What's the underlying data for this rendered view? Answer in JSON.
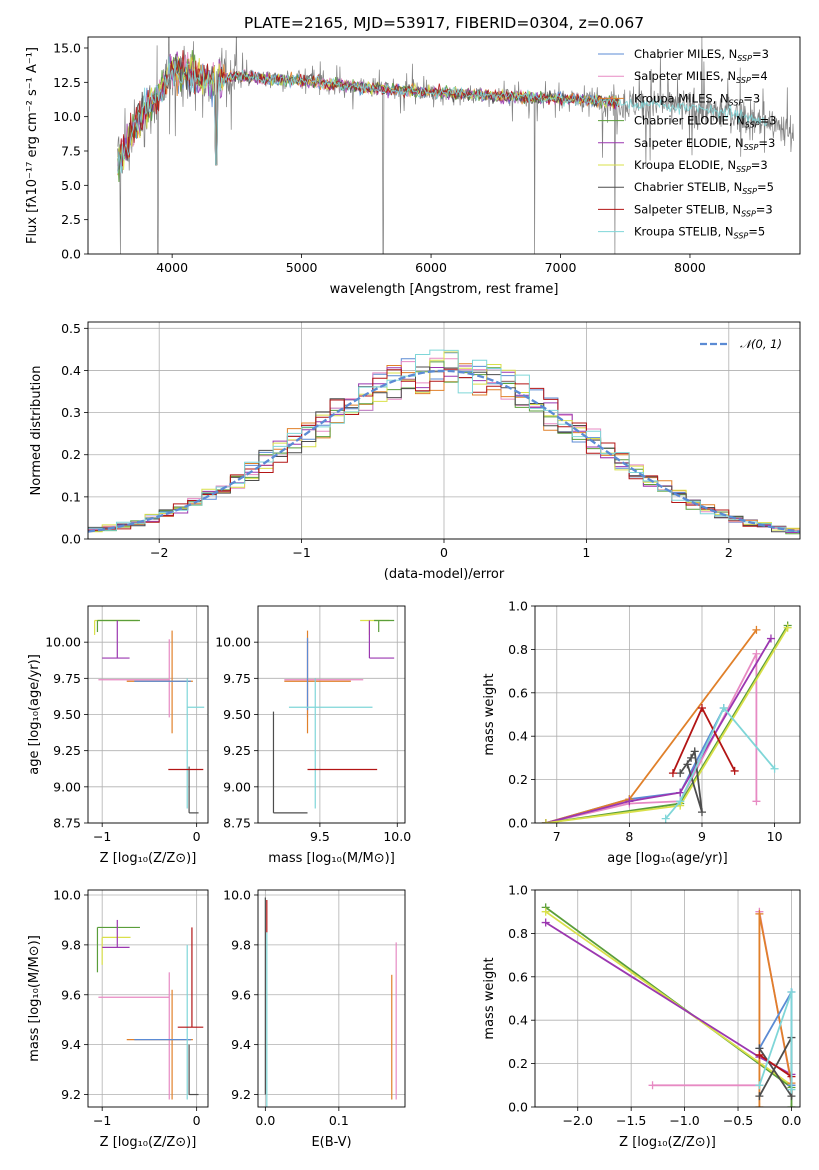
{
  "colors": {
    "chabrier_miles": "#5b8bd4",
    "salpeter_miles": "#e78ac3",
    "kroupa_miles": "#e0802a",
    "chabrier_elodie": "#5a9e3a",
    "salpeter_elodie": "#9b37b0",
    "kroupa_elodie": "#d9e04a",
    "chabrier_stelib": "#4d4d4d",
    "salpeter_stelib": "#b31515",
    "kroupa_stelib": "#7fd6d8",
    "data": "#808080",
    "normal": "#5b8bd4"
  },
  "chart_data": [
    {
      "id": "spectrum",
      "type": "line",
      "title": "PLATE=2165, MJD=53917, FIBERID=0304, z=0.067",
      "xlabel": "wavelength [Angstrom, rest frame]",
      "ylabel": "Flux [fλ10⁻¹⁷ erg cm⁻² s⁻¹ A⁻¹]",
      "xlim": [
        3350,
        8850
      ],
      "ylim": [
        0,
        15.8
      ],
      "xticks": [
        "4000",
        "5000",
        "6000",
        "7000",
        "8000"
      ],
      "xtick_values": [
        4000,
        5000,
        6000,
        7000,
        8000
      ],
      "yticks": [
        "0.0",
        "2.5",
        "5.0",
        "7.5",
        "10.0",
        "12.5",
        "15.0"
      ],
      "ytick_values": [
        0,
        2.5,
        5,
        7.5,
        10,
        12.5,
        15
      ],
      "grid": false,
      "legend_position": "top-right",
      "continuum": {
        "x": [
          3580,
          3700,
          3800,
          3900,
          4000,
          4100,
          4200,
          4300,
          4500,
          4700,
          5000,
          5500,
          6000,
          6500,
          7000,
          7300,
          7500,
          7800,
          8000,
          8300,
          8600,
          8800
        ],
        "y": [
          6.5,
          9.0,
          10.5,
          11.5,
          13.5,
          13.2,
          12.9,
          12.6,
          13.0,
          12.8,
          12.6,
          12.1,
          11.8,
          11.5,
          11.3,
          11.2,
          11.0,
          10.8,
          10.6,
          10.3,
          9.5,
          8.8
        ]
      },
      "dips": [
        {
          "x": 3600,
          "y": 0
        },
        {
          "x": 3890,
          "y": 0
        },
        {
          "x": 4340,
          "y": 6.5
        },
        {
          "x": 5630,
          "y": 0
        },
        {
          "x": 6800,
          "y": 0
        },
        {
          "x": 7420,
          "y": 0
        }
      ],
      "series": [
        {
          "name": "Chabrier MILES, N",
          "sub": "SSP",
          "suffix": "=3",
          "color_key": "chabrier_miles"
        },
        {
          "name": "Salpeter MILES, N",
          "sub": "SSP",
          "suffix": "=4",
          "color_key": "salpeter_miles"
        },
        {
          "name": "Kroupa MILES, N",
          "sub": "SSP",
          "suffix": "=3",
          "color_key": "kroupa_miles"
        },
        {
          "name": "Chabrier ELODIE, N",
          "sub": "SSP",
          "suffix": "=3",
          "color_key": "chabrier_elodie"
        },
        {
          "name": "Salpeter ELODIE, N",
          "sub": "SSP",
          "suffix": "=3",
          "color_key": "salpeter_elodie"
        },
        {
          "name": "Kroupa ELODIE, N",
          "sub": "SSP",
          "suffix": "=3",
          "color_key": "kroupa_elodie"
        },
        {
          "name": "Chabrier STELIB, N",
          "sub": "SSP",
          "suffix": "=5",
          "color_key": "chabrier_stelib"
        },
        {
          "name": "Salpeter STELIB, N",
          "sub": "SSP",
          "suffix": "=3",
          "color_key": "salpeter_stelib"
        },
        {
          "name": "Kroupa STELIB, N",
          "sub": "SSP",
          "suffix": "=5",
          "color_key": "kroupa_stelib"
        }
      ]
    },
    {
      "id": "residuals",
      "type": "histogram",
      "xlabel": "(data-model)/error",
      "ylabel": "Normed distribution",
      "xlim": [
        -2.5,
        2.5
      ],
      "ylim": [
        0,
        0.515
      ],
      "xticks": [
        "−2",
        "−1",
        "0",
        "1",
        "2"
      ],
      "xtick_values": [
        -2,
        -1,
        0,
        1,
        2
      ],
      "yticks": [
        "0.0",
        "0.1",
        "0.2",
        "0.3",
        "0.4",
        "0.5"
      ],
      "ytick_values": [
        0,
        0.1,
        0.2,
        0.3,
        0.4,
        0.5
      ],
      "grid": true,
      "legend_position": "top-right",
      "legend": "𝒩(0, 1)",
      "bin_width": 0.1,
      "num_bins": 50
    },
    {
      "id": "age_vs_Z",
      "type": "errorbar",
      "xlabel": "Z [log₁₀(Z/Z⊙)]",
      "ylabel": "age  [log₁₀(age/yr)]",
      "xlim": [
        -1.15,
        0.12
      ],
      "ylim": [
        8.75,
        10.25
      ],
      "xticks": [
        "−1",
        "0"
      ],
      "xtick_values": [
        -1,
        0
      ],
      "yticks": [
        "8.75",
        "9.00",
        "9.25",
        "9.50",
        "9.75",
        "10.00"
      ],
      "ytick_values": [
        8.75,
        9.0,
        9.25,
        9.5,
        9.75,
        10.0
      ],
      "grid": true,
      "points": [
        {
          "key": "kroupa_elodie",
          "x": -1.08,
          "xerr": [
            0.0,
            0.46
          ],
          "y": 10.15,
          "yerr": [
            0.1,
            0.0
          ]
        },
        {
          "key": "chabrier_elodie",
          "x": -1.05,
          "xerr": [
            0.0,
            0.45
          ],
          "y": 10.15,
          "yerr": [
            0.08,
            0.0
          ]
        },
        {
          "key": "salpeter_elodie",
          "x": -0.84,
          "xerr": [
            0.16,
            0.13
          ],
          "y": 9.89,
          "yerr": [
            0.0,
            0.26
          ]
        },
        {
          "key": "salpeter_miles",
          "x": -0.29,
          "xerr": [
            0.75,
            0.0
          ],
          "y": 9.74,
          "yerr": [
            0.26,
            0.28
          ]
        },
        {
          "key": "kroupa_miles",
          "x": -0.26,
          "xerr": [
            0.48,
            0.22
          ],
          "y": 9.73,
          "yerr": [
            0.36,
            0.35
          ]
        },
        {
          "key": "chabrier_miles",
          "x": -0.26,
          "xerr": [
            0.4,
            0.2
          ],
          "y": 9.73,
          "yerr": [
            0.0,
            0.0
          ]
        },
        {
          "key": "kroupa_stelib",
          "x": -0.1,
          "xerr": [
            0.0,
            0.18
          ],
          "y": 9.55,
          "yerr": [
            0.7,
            0.2
          ]
        },
        {
          "key": "chabrier_stelib",
          "x": -0.08,
          "xerr": [
            0.0,
            0.1
          ],
          "y": 8.82,
          "yerr": [
            0.0,
            0.32
          ]
        },
        {
          "key": "salpeter_stelib",
          "x": -0.05,
          "xerr": [
            0.25,
            0.12
          ],
          "y": 9.12,
          "yerr": [
            0.0,
            0.0
          ]
        }
      ]
    },
    {
      "id": "age_vs_mass",
      "type": "errorbar",
      "xlabel": "mass [log₁₀(M/M⊙)]",
      "ylabel": "",
      "xlim": [
        9.1,
        10.05
      ],
      "ylim": [
        8.75,
        10.25
      ],
      "xticks": [
        "9.5",
        "10.0"
      ],
      "xtick_values": [
        9.5,
        10.0
      ],
      "yticks": [
        "8.75",
        "9.00",
        "9.25",
        "9.50",
        "9.75",
        "10.00"
      ],
      "ytick_values": [
        8.75,
        9.0,
        9.25,
        9.5,
        9.75,
        10.0
      ],
      "grid": true,
      "points": [
        {
          "key": "kroupa_elodie",
          "x": 9.82,
          "xerr": [
            0.06,
            0.13
          ],
          "y": 10.15,
          "yerr": [
            0.1,
            0.0
          ]
        },
        {
          "key": "chabrier_elodie",
          "x": 9.88,
          "xerr": [
            0.03,
            0.1
          ],
          "y": 10.15,
          "yerr": [
            0.08,
            0.0
          ]
        },
        {
          "key": "salpeter_elodie",
          "x": 9.82,
          "xerr": [
            0.0,
            0.16
          ],
          "y": 9.89,
          "yerr": [
            0.0,
            0.26
          ]
        },
        {
          "key": "salpeter_miles",
          "x": 9.42,
          "xerr": [
            0.15,
            0.36
          ],
          "y": 9.74,
          "yerr": [
            0.26,
            0.28
          ]
        },
        {
          "key": "kroupa_miles",
          "x": 9.42,
          "xerr": [
            0.15,
            0.28
          ],
          "y": 9.73,
          "yerr": [
            0.36,
            0.35
          ]
        },
        {
          "key": "chabrier_miles",
          "x": 9.42,
          "xerr": [
            0.0,
            0.0
          ],
          "y": 9.73,
          "yerr": [
            0.2,
            0.3
          ]
        },
        {
          "key": "kroupa_stelib",
          "x": 9.47,
          "xerr": [
            0.17,
            0.37
          ],
          "y": 9.55,
          "yerr": [
            0.7,
            0.2
          ]
        },
        {
          "key": "chabrier_stelib",
          "x": 9.2,
          "xerr": [
            0.0,
            0.22
          ],
          "y": 8.82,
          "yerr": [
            0.0,
            0.7
          ]
        },
        {
          "key": "salpeter_stelib",
          "x": 9.42,
          "xerr": [
            0.0,
            0.45
          ],
          "y": 9.12,
          "yerr": [
            0.0,
            0.0
          ]
        }
      ]
    },
    {
      "id": "weight_vs_age",
      "type": "line",
      "xlabel": "age  [log₁₀(age/yr)]",
      "ylabel": "mass weight",
      "xlim": [
        6.7,
        10.35
      ],
      "ylim": [
        0,
        1.0
      ],
      "xticks": [
        "7",
        "8",
        "9",
        "10"
      ],
      "xtick_values": [
        7,
        8,
        9,
        10
      ],
      "yticks": [
        "0.0",
        "0.2",
        "0.4",
        "0.6",
        "0.8",
        "1.0"
      ],
      "ytick_values": [
        0,
        0.2,
        0.4,
        0.6,
        0.8,
        1.0
      ],
      "grid": true,
      "series": [
        {
          "key": "chabrier_miles",
          "x": [
            6.85,
            8.0,
            8.7,
            9.3
          ],
          "y": [
            0.0,
            0.11,
            0.14,
            0.53
          ]
        },
        {
          "key": "salpeter_miles",
          "x": [
            6.85,
            8.0,
            8.7,
            9.75,
            9.75
          ],
          "y": [
            0.0,
            0.09,
            0.1,
            0.78,
            0.1
          ]
        },
        {
          "key": "kroupa_miles",
          "x": [
            6.85,
            8.0,
            9.75
          ],
          "y": [
            0.0,
            0.11,
            0.89
          ]
        },
        {
          "key": "chabrier_elodie",
          "x": [
            6.85,
            8.7,
            10.18
          ],
          "y": [
            0.0,
            0.09,
            0.91
          ]
        },
        {
          "key": "salpeter_elodie",
          "x": [
            6.85,
            8.0,
            8.7,
            9.95
          ],
          "y": [
            0.0,
            0.1,
            0.14,
            0.85
          ]
        },
        {
          "key": "kroupa_elodie",
          "x": [
            6.85,
            8.7,
            10.18
          ],
          "y": [
            0.0,
            0.08,
            0.9
          ]
        },
        {
          "key": "chabrier_stelib",
          "x": [
            8.7,
            8.85,
            8.9,
            9.0,
            8.8
          ],
          "y": [
            0.23,
            0.3,
            0.33,
            0.05,
            0.27
          ]
        },
        {
          "key": "salpeter_stelib",
          "x": [
            8.6,
            9.0,
            9.45
          ],
          "y": [
            0.23,
            0.53,
            0.24
          ]
        },
        {
          "key": "kroupa_stelib",
          "x": [
            8.5,
            8.7,
            9.3,
            10.0
          ],
          "y": [
            0.02,
            0.1,
            0.53,
            0.25
          ]
        }
      ]
    },
    {
      "id": "mass_vs_Z",
      "type": "errorbar",
      "xlabel": "Z [log₁₀(Z/Z⊙)]",
      "ylabel": "mass [log₁₀(M/M⊙)]",
      "xlim": [
        -1.15,
        0.12
      ],
      "ylim": [
        9.15,
        10.02
      ],
      "xticks": [
        "−1",
        "0"
      ],
      "xtick_values": [
        -1,
        0
      ],
      "yticks": [
        "9.2",
        "9.4",
        "9.6",
        "9.8",
        "10.0"
      ],
      "ytick_values": [
        9.2,
        9.4,
        9.6,
        9.8,
        10.0
      ],
      "grid": true,
      "points": [
        {
          "key": "chabrier_elodie",
          "x": -1.05,
          "xerr": [
            0.0,
            0.45
          ],
          "y": 9.87,
          "yerr": [
            0.18,
            0.0
          ]
        },
        {
          "key": "kroupa_elodie",
          "x": -1.0,
          "xerr": [
            0.0,
            0.3
          ],
          "y": 9.83,
          "yerr": [
            0.11,
            0.0
          ]
        },
        {
          "key": "salpeter_elodie",
          "x": -0.84,
          "xerr": [
            0.16,
            0.13
          ],
          "y": 9.79,
          "yerr": [
            0.0,
            0.11
          ]
        },
        {
          "key": "salpeter_miles",
          "x": -0.29,
          "xerr": [
            0.75,
            0.0
          ],
          "y": 9.59,
          "yerr": [
            0.41,
            0.1
          ]
        },
        {
          "key": "kroupa_miles",
          "x": -0.26,
          "xerr": [
            0.48,
            0.22
          ],
          "y": 9.42,
          "yerr": [
            0.24,
            0.2
          ]
        },
        {
          "key": "chabrier_miles",
          "x": -0.26,
          "xerr": [
            0.4,
            0.2
          ],
          "y": 9.42,
          "yerr": [
            0.0,
            0.0
          ]
        },
        {
          "key": "kroupa_stelib",
          "x": -0.1,
          "xerr": [
            0.0,
            0.0
          ],
          "y": 9.6,
          "yerr": [
            0.42,
            0.2
          ]
        },
        {
          "key": "chabrier_stelib",
          "x": -0.08,
          "xerr": [
            0.0,
            0.1
          ],
          "y": 9.2,
          "yerr": [
            0.0,
            0.2
          ]
        },
        {
          "key": "salpeter_stelib",
          "x": -0.05,
          "xerr": [
            0.15,
            0.12
          ],
          "y": 9.47,
          "yerr": [
            0.0,
            0.4
          ]
        }
      ]
    },
    {
      "id": "mass_vs_ebv",
      "type": "errorbar",
      "xlabel": "E(B-V)",
      "ylabel": "",
      "xlim": [
        -0.01,
        0.19
      ],
      "ylim": [
        9.15,
        10.02
      ],
      "xticks": [
        "0.0",
        "0.1"
      ],
      "xtick_values": [
        0.0,
        0.1
      ],
      "yticks": [
        "9.2",
        "9.4",
        "9.6",
        "9.8",
        "10.0"
      ],
      "ytick_values": [
        9.2,
        9.4,
        9.6,
        9.8,
        10.0
      ],
      "grid": true,
      "points": [
        {
          "key": "salpeter_stelib",
          "x": 0.002,
          "xerr": [
            0.0,
            0.0
          ],
          "y": 9.85,
          "yerr": [
            0.0,
            0.13
          ]
        },
        {
          "key": "chabrier_stelib",
          "x": 0.0,
          "xerr": [
            0.0,
            0.0
          ],
          "y": 9.6,
          "yerr": [
            0.4,
            0.39
          ]
        },
        {
          "key": "kroupa_stelib",
          "x": 0.002,
          "xerr": [
            0.0,
            0.0
          ],
          "y": 9.55,
          "yerr": [
            0.4,
            0.3
          ]
        },
        {
          "key": "salpeter_miles",
          "x": 0.178,
          "xerr": [
            0.0,
            0.0
          ],
          "y": 9.5,
          "yerr": [
            0.32,
            0.31
          ]
        },
        {
          "key": "kroupa_miles",
          "x": 0.172,
          "xerr": [
            0.0,
            0.0
          ],
          "y": 9.43,
          "yerr": [
            0.25,
            0.25
          ]
        }
      ]
    },
    {
      "id": "weight_vs_Z",
      "type": "line",
      "xlabel": "Z [log₁₀(Z/Z⊙)]",
      "ylabel": "mass weight",
      "xlim": [
        -2.4,
        0.08
      ],
      "ylim": [
        0,
        1.0
      ],
      "xticks": [
        "−2.0",
        "−1.5",
        "−1.0",
        "−0.5",
        "0.0"
      ],
      "xtick_values": [
        -2.0,
        -1.5,
        -1.0,
        -0.5,
        0.0
      ],
      "yticks": [
        "0.0",
        "0.2",
        "0.4",
        "0.6",
        "0.8",
        "1.0"
      ],
      "ytick_values": [
        0,
        0.2,
        0.4,
        0.6,
        0.8,
        1.0
      ],
      "grid": true,
      "series": [
        {
          "key": "chabrier_elodie",
          "x": [
            -2.3,
            0.0,
            0.0
          ],
          "y": [
            0.92,
            0.09,
            0.0
          ]
        },
        {
          "key": "kroupa_elodie",
          "x": [
            -2.3,
            0.0
          ],
          "y": [
            0.9,
            0.1
          ]
        },
        {
          "key": "salpeter_elodie",
          "x": [
            -2.3,
            -0.3,
            0.0
          ],
          "y": [
            0.85,
            0.23,
            0.15
          ]
        },
        {
          "key": "salpeter_miles",
          "x": [
            -1.3,
            -0.3,
            -0.3,
            0.0
          ],
          "y": [
            0.1,
            0.1,
            0.9,
            0.1
          ]
        },
        {
          "key": "kroupa_miles",
          "x": [
            -0.3,
            -0.3,
            0.0
          ],
          "y": [
            0.0,
            0.89,
            0.11
          ]
        },
        {
          "key": "chabrier_miles",
          "x": [
            -0.3,
            0.0,
            0.0
          ],
          "y": [
            0.27,
            0.53,
            0.1
          ]
        },
        {
          "key": "chabrier_stelib",
          "x": [
            -0.3,
            0.0,
            0.0,
            -0.3
          ],
          "y": [
            0.05,
            0.32,
            0.05,
            0.27
          ]
        },
        {
          "key": "salpeter_stelib",
          "x": [
            -0.3,
            0.0
          ],
          "y": [
            0.24,
            0.14
          ]
        },
        {
          "key": "kroupa_stelib",
          "x": [
            -0.3,
            0.0,
            0.0
          ],
          "y": [
            0.1,
            0.53,
            0.08
          ]
        }
      ]
    }
  ]
}
